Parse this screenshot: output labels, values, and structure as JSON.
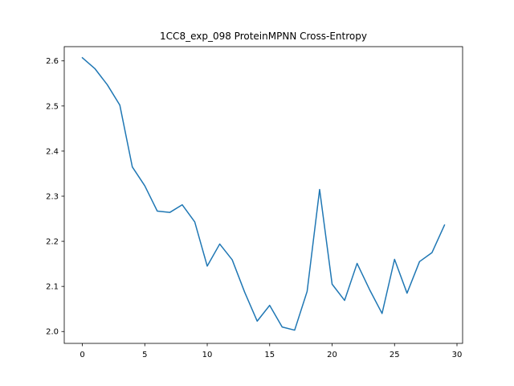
{
  "chart_data": {
    "type": "line",
    "title": "1CC8_exp_098 ProteinMPNN Cross-Entropy",
    "xlabel": "",
    "ylabel": "",
    "xlim": [
      -1.45,
      30.45
    ],
    "ylim": [
      1.9737,
      2.6316
    ],
    "x_ticks": [
      0,
      5,
      10,
      15,
      20,
      25,
      30
    ],
    "y_ticks": [
      2.0,
      2.1,
      2.2,
      2.3,
      2.4,
      2.5,
      2.6
    ],
    "y_tick_labels": [
      "2.0",
      "2.1",
      "2.2",
      "2.3",
      "2.4",
      "2.5",
      "2.6"
    ],
    "grid": false,
    "line_color": "#1f77b4",
    "x": [
      0,
      1,
      2,
      3,
      4,
      5,
      6,
      7,
      8,
      9,
      10,
      11,
      12,
      13,
      14,
      15,
      16,
      17,
      18,
      19,
      20,
      21,
      22,
      23,
      24,
      25,
      26,
      27,
      28,
      29
    ],
    "series": [
      {
        "values": [
          2.607,
          2.583,
          2.547,
          2.502,
          2.365,
          2.323,
          2.267,
          2.264,
          2.281,
          2.243,
          2.145,
          2.194,
          2.159,
          2.087,
          2.023,
          2.058,
          2.01,
          2.003,
          2.089,
          2.315,
          2.105,
          2.069,
          2.151,
          2.093,
          2.04,
          2.16,
          2.085,
          2.155,
          2.175,
          2.236
        ]
      }
    ]
  }
}
